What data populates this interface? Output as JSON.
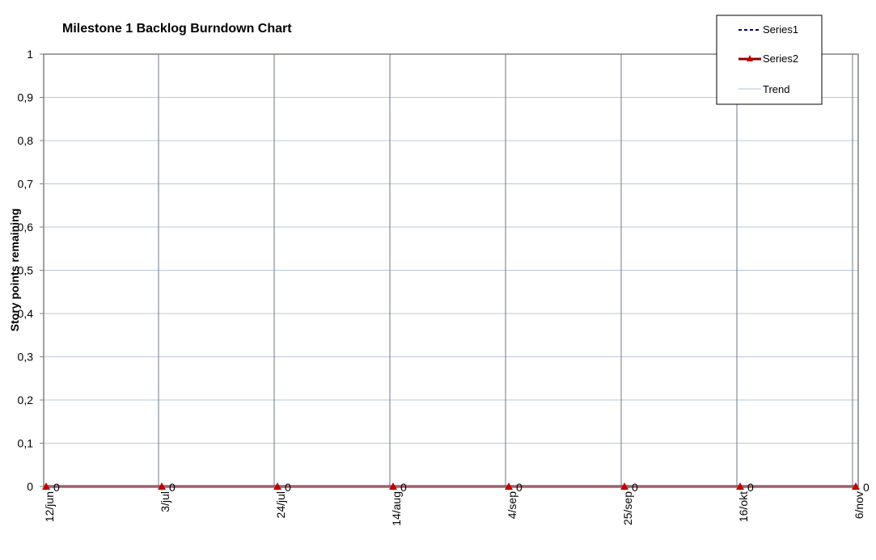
{
  "chart_data": {
    "type": "line",
    "title": "Milestone 1 Backlog Burndown Chart",
    "xlabel": "",
    "ylabel": "Story points remaining",
    "x": [
      "12/jun",
      "3/jul",
      "24/jul",
      "14/aug",
      "4/sep",
      "25/sep",
      "16/okt",
      "6/nov"
    ],
    "ylim": [
      0,
      1
    ],
    "yticks": [
      "0",
      "0,1",
      "0,2",
      "0,3",
      "0,4",
      "0,5",
      "0,6",
      "0,7",
      "0,8",
      "0,9",
      "1"
    ],
    "series": [
      {
        "name": "Series1",
        "values": [
          0,
          0,
          0,
          0,
          0,
          0,
          0,
          0
        ],
        "color": "#000080",
        "style": "dashed"
      },
      {
        "name": "Series2",
        "values": [
          0,
          0,
          0,
          0,
          0,
          0,
          0,
          0
        ],
        "color": "#8b0000",
        "marker": "triangle",
        "marker_color": "#c00000",
        "data_labels": [
          "0",
          "0",
          "0",
          "0",
          "0",
          "0",
          "0",
          "0"
        ]
      },
      {
        "name": "Trend",
        "values": [
          0,
          0,
          0,
          0,
          0,
          0,
          0,
          0
        ],
        "color": "#b0c4de"
      }
    ],
    "grid": true,
    "legend": "top-right"
  }
}
